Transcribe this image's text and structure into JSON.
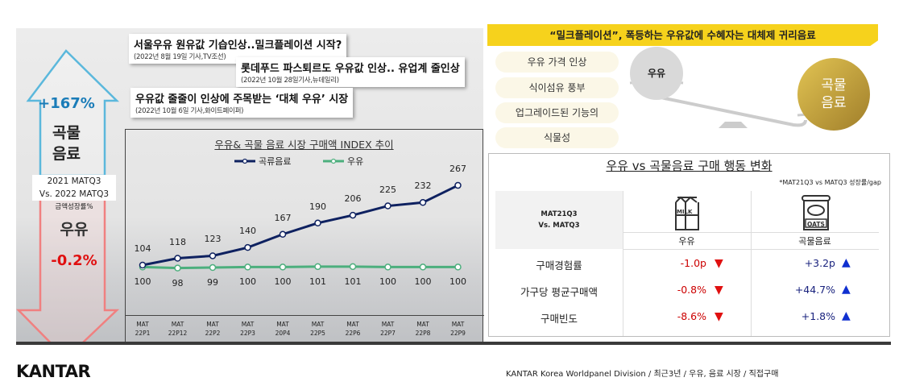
{
  "headlines": [
    {
      "title": "서울우유 원유값 기습인상..밀크플레이션 시작?",
      "source": "(2022년 8월 19일 기사,TV조선)"
    },
    {
      "title": "롯데푸드 파스퇴르도 우유값 인상.. 유업계 줄인상",
      "source": "(2022년 10월 28일기사,뉴데일리)"
    },
    {
      "title": "우유값 줄줄이 인상에 주목받는 ‘대체 우유’ 시장",
      "source": "(2022년 10월 6일 기사,화이트페이퍼)"
    }
  ],
  "left_summary": {
    "grain_growth": "+167%",
    "grain_label_1": "곡물",
    "grain_label_2": "음료",
    "period_1": "2021 MATQ3",
    "period_2": "Vs. 2022 MATQ3",
    "metric": "금액성장률%",
    "milk_label": "우유",
    "milk_growth": "-0.2%",
    "up_color": "#5bb8dc",
    "down_color": "#f08080"
  },
  "chart_data": {
    "type": "line",
    "title": "우유& 곡물 음료 시장 구매액 INDEX 추이",
    "categories": [
      [
        "MAT",
        "22P1"
      ],
      [
        "MAT",
        "22P12"
      ],
      [
        "MAT",
        "22P2"
      ],
      [
        "MAT",
        "22P3"
      ],
      [
        "MAT",
        "20P4"
      ],
      [
        "MAT",
        "22P5"
      ],
      [
        "MAT",
        "22P6"
      ],
      [
        "MAT",
        "22P7"
      ],
      [
        "MAT",
        "22P8"
      ],
      [
        "MAT",
        "22P9"
      ]
    ],
    "series": [
      {
        "name": "곡류음료",
        "color": "#0e2160",
        "values": [
          104,
          118,
          123,
          140,
          167,
          190,
          206,
          225,
          232,
          267
        ]
      },
      {
        "name": "우유",
        "color": "#4caf7d",
        "values": [
          100,
          98,
          99,
          100,
          100,
          101,
          101,
          100,
          100,
          100
        ]
      }
    ],
    "legend": "top-center",
    "grid": false
  },
  "banner": "“밀크플레이션”, 폭등하는 우유값에 수혜자는 대체제 귀리음료",
  "pills": [
    "우유 가격 인상",
    "식이섬유 풍부",
    "업그레이드된 기능의",
    "식물성"
  ],
  "scale": {
    "left": "우유",
    "right_1": "곡물",
    "right_2": "음료",
    "gold": "#c9a23a"
  },
  "table": {
    "title": "우유 vs 곡물음료 구매 행동 변화",
    "note": "*MAT21Q3 vs MATQ3 성장률/gap",
    "corner_1": "MAT21Q3",
    "corner_2": "Vs. MATQ3",
    "col_milk": "우유",
    "col_grain": "곡물음료",
    "milk_icon_text": "MILK",
    "oats_icon_text": "OATS",
    "rows": [
      {
        "label": "구매경험률",
        "milk": "-1.0p",
        "grain": "+3.2p"
      },
      {
        "label": "가구당 평균구매액",
        "milk": "-0.8%",
        "grain": "+44.7%"
      },
      {
        "label": "구매빈도",
        "milk": "-8.6%",
        "grain": "+1.8%"
      }
    ],
    "down_color": "#e01010",
    "up_color": "#1030d0"
  },
  "footer": {
    "logo": "KANTAR",
    "source": "KANTAR Korea Worldpanel Division / 최근3년 /  우유, 음료 시장 / 직접구매"
  }
}
